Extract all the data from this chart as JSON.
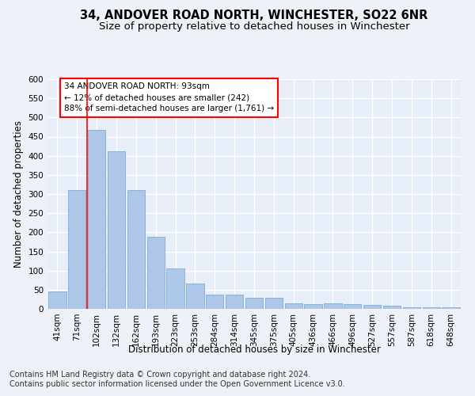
{
  "title": "34, ANDOVER ROAD NORTH, WINCHESTER, SO22 6NR",
  "subtitle": "Size of property relative to detached houses in Winchester",
  "xlabel": "Distribution of detached houses by size in Winchester",
  "ylabel": "Number of detached properties",
  "bar_color": "#aec6e8",
  "bar_edge_color": "#7aafd4",
  "categories": [
    "41sqm",
    "71sqm",
    "102sqm",
    "132sqm",
    "162sqm",
    "193sqm",
    "223sqm",
    "253sqm",
    "284sqm",
    "314sqm",
    "345sqm",
    "375sqm",
    "405sqm",
    "436sqm",
    "466sqm",
    "496sqm",
    "527sqm",
    "557sqm",
    "587sqm",
    "618sqm",
    "648sqm"
  ],
  "values": [
    46,
    311,
    467,
    412,
    311,
    188,
    105,
    66,
    38,
    38,
    30,
    30,
    14,
    12,
    14,
    12,
    10,
    8,
    5,
    5,
    5
  ],
  "ylim": [
    0,
    600
  ],
  "yticks": [
    0,
    50,
    100,
    150,
    200,
    250,
    300,
    350,
    400,
    450,
    500,
    550,
    600
  ],
  "red_line_x": 1.5,
  "annotation_text": "34 ANDOVER ROAD NORTH: 93sqm\n← 12% of detached houses are smaller (242)\n88% of semi-detached houses are larger (1,761) →",
  "footer_line1": "Contains HM Land Registry data © Crown copyright and database right 2024.",
  "footer_line2": "Contains public sector information licensed under the Open Government Licence v3.0.",
  "fig_facecolor": "#eef2f8",
  "ax_facecolor": "#e8eef8",
  "grid_color": "#ffffff",
  "title_fontsize": 10.5,
  "subtitle_fontsize": 9.5,
  "axis_label_fontsize": 8.5,
  "tick_fontsize": 7.5,
  "annotation_fontsize": 7.5,
  "footer_fontsize": 7
}
